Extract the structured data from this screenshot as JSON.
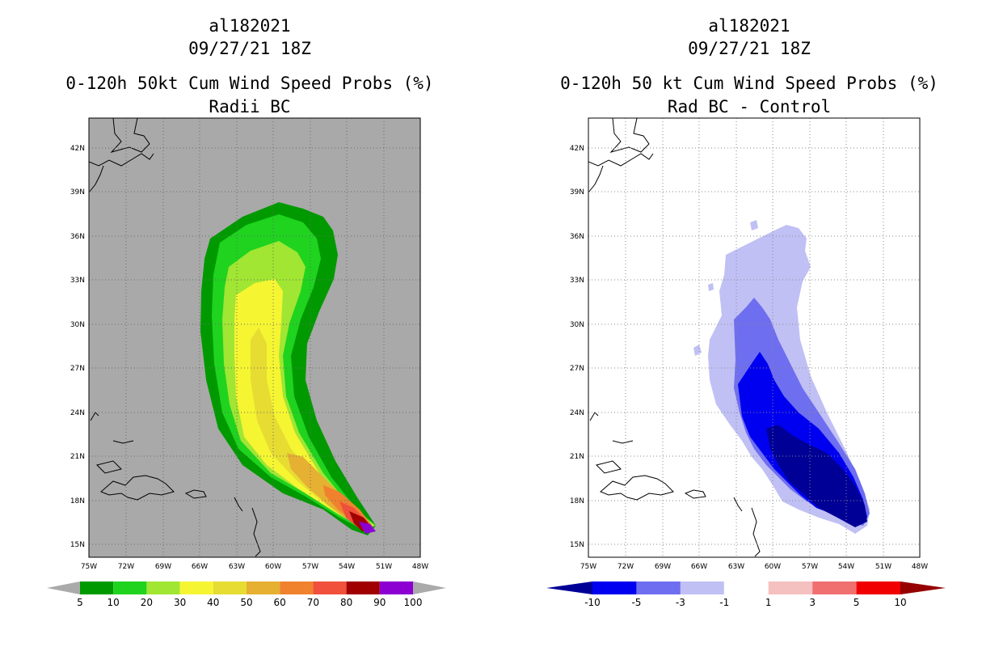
{
  "left": {
    "title": {
      "storm_id": "al182021",
      "datetime": "09/27/21 18Z",
      "product": "0-120h 50kt Cum Wind Speed Probs (%)",
      "subtitle": "Radii BC"
    },
    "axes": {
      "lon_ticks": [
        "75W",
        "72W",
        "69W",
        "66W",
        "63W",
        "60W",
        "57W",
        "54W",
        "51W",
        "48W"
      ],
      "lat_ticks": [
        "42N",
        "39N",
        "36N",
        "33N",
        "30N",
        "27N",
        "24N",
        "21N",
        "18N",
        "15N"
      ]
    },
    "colorbar": {
      "labels": [
        "5",
        "10",
        "20",
        "30",
        "40",
        "50",
        "60",
        "70",
        "80",
        "90",
        "100"
      ],
      "colors": [
        "#009a00",
        "#1fd31f",
        "#a0e632",
        "#f5f532",
        "#e6dc32",
        "#e6b032",
        "#f0822d",
        "#f0503c",
        "#a00000",
        "#8c00d2"
      ],
      "end_color": "#aaaaaa"
    },
    "background_color": "#a9a9a9"
  },
  "right": {
    "title": {
      "storm_id": "al182021",
      "datetime": "09/27/21 18Z",
      "product": "0-120h 50 kt Cum Wind Speed Probs (%)",
      "subtitle": "Rad BC - Control"
    },
    "axes": {
      "lon_ticks": [
        "75W",
        "72W",
        "69W",
        "66W",
        "63W",
        "60W",
        "57W",
        "54W",
        "51W",
        "48W"
      ],
      "lat_ticks": [
        "42N",
        "39N",
        "36N",
        "33N",
        "30N",
        "27N",
        "24N",
        "21N",
        "18N",
        "15N"
      ]
    },
    "colorbar": {
      "labels": [
        "-10",
        "-5",
        "-3",
        "-1",
        "1",
        "3",
        "5",
        "10"
      ],
      "colors": [
        "#0000f0",
        "#6e6ef0",
        "#c0c0f5",
        "#ffffff",
        "#f5c0c0",
        "#f07070",
        "#f00000"
      ],
      "end_left": "#000096",
      "end_right": "#960000"
    },
    "background_color": "#ffffff"
  }
}
